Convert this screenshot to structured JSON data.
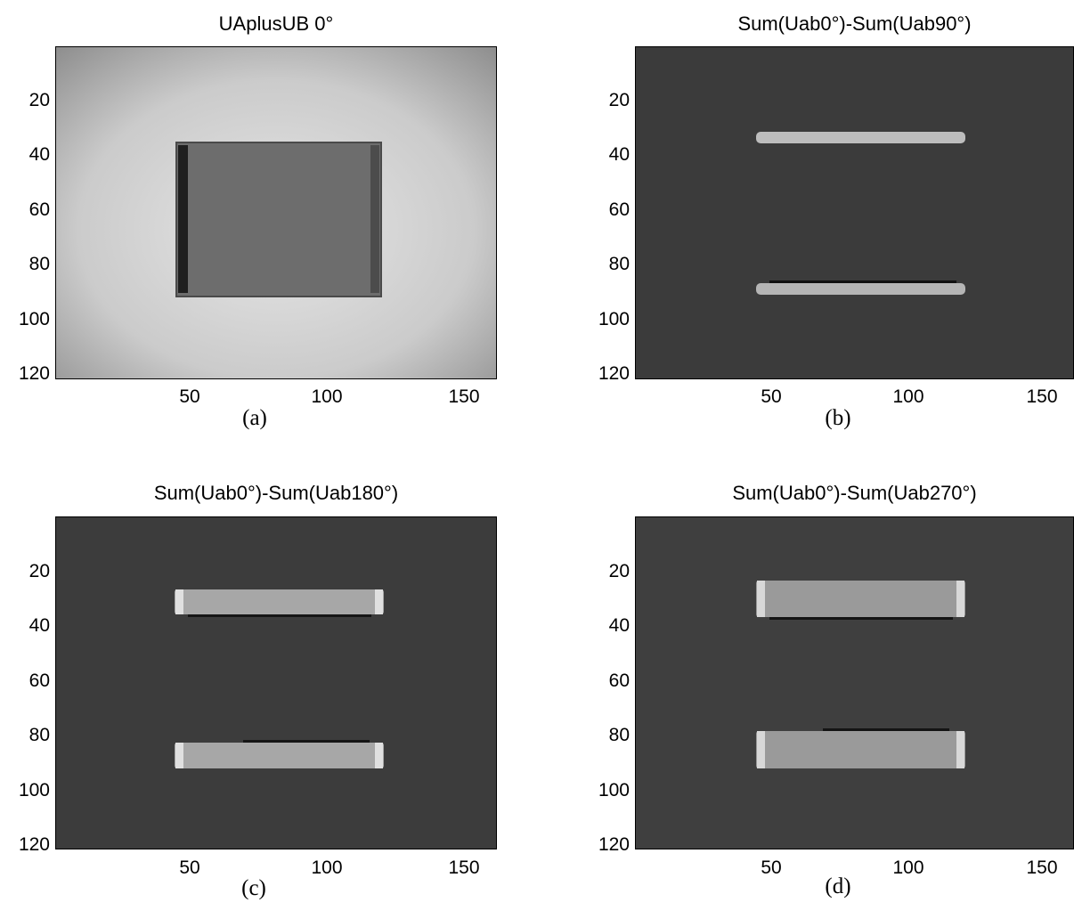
{
  "figure": {
    "panels": [
      {
        "title": "UAplusUB 0°",
        "caption": "(a)",
        "yticks": [
          "20",
          "40",
          "60",
          "80",
          "100",
          "120"
        ],
        "xticks": [
          "50",
          "100",
          "150"
        ],
        "image": "bright-field-with-dark-rectangle"
      },
      {
        "title": "Sum(Uab0°)-Sum(Uab90°)",
        "caption": "(b)",
        "yticks": [
          "20",
          "40",
          "60",
          "80",
          "100",
          "120"
        ],
        "xticks": [
          "50",
          "100",
          "150"
        ],
        "image": "dark-field-two-thin-bars"
      },
      {
        "title": "Sum(Uab0°)-Sum(Uab180°)",
        "caption": "(c)",
        "yticks": [
          "20",
          "40",
          "60",
          "80",
          "100",
          "120"
        ],
        "xticks": [
          "50",
          "100",
          "150"
        ],
        "image": "dark-field-two-medium-bars"
      },
      {
        "title": "Sum(Uab0°)-Sum(Uab270°)",
        "caption": "(d)",
        "yticks": [
          "20",
          "40",
          "60",
          "80",
          "100",
          "120"
        ],
        "xticks": [
          "50",
          "100",
          "150"
        ],
        "image": "dark-field-two-thick-bars"
      }
    ]
  }
}
